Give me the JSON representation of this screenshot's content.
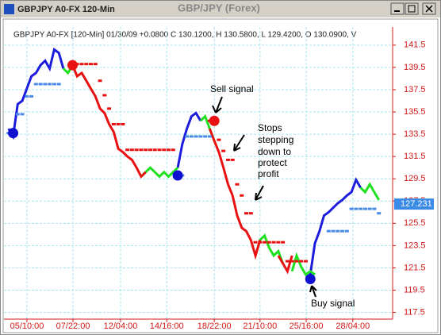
{
  "window": {
    "title": "GBPJPY A0-FX 120-Min",
    "caption": "GBP/JPY (Forex)"
  },
  "chart_data": {
    "type": "line",
    "info": "GBPJPY A0-FX [120-Min] 01/30/09 +0.0800 C 130.1200, H 130.5800, L 129.4200, O 130.0900, V",
    "x": [
      0,
      1,
      2,
      3,
      4,
      5,
      6,
      7,
      8,
      9,
      10,
      11,
      12,
      13,
      14,
      15,
      16,
      17,
      18,
      19,
      20,
      21,
      22,
      23,
      24,
      25,
      26,
      27,
      28,
      29,
      30,
      31,
      32,
      33,
      34,
      35,
      36,
      37,
      38,
      39,
      40,
      41,
      42,
      43,
      44,
      45,
      46,
      47,
      48,
      49,
      50,
      51,
      52,
      53,
      54,
      55,
      56,
      57,
      58,
      59,
      60,
      61,
      62,
      63,
      64,
      65,
      66,
      67,
      68,
      69,
      70,
      71,
      72,
      73,
      74,
      75,
      76,
      77,
      78,
      79,
      80,
      81
    ],
    "xlim": [
      -1,
      84
    ],
    "xticks": [
      {
        "value": 4.03,
        "label": "05/10:00"
      },
      {
        "value": 14.1,
        "label": "07/22:00"
      },
      {
        "value": 24.5,
        "label": "12/04:00"
      },
      {
        "value": 34.6,
        "label": "14/16:00"
      },
      {
        "value": 45.0,
        "label": "18/22:00"
      },
      {
        "value": 55.0,
        "label": "21/10:00"
      },
      {
        "value": 65.1,
        "label": "25/16:00"
      },
      {
        "value": 75.3,
        "label": "28/04:00"
      }
    ],
    "ylim": [
      116.9,
      142.7
    ],
    "yticks": [
      117.5,
      119.5,
      121.5,
      123.5,
      125.5,
      127.5,
      129.5,
      131.5,
      133.5,
      135.5,
      137.5,
      139.5,
      141.5
    ],
    "grid": true,
    "series": [
      {
        "color": "#1c1cdc",
        "style": "line",
        "values": [
          134.0,
          133.3,
          136.2,
          136.5,
          137.6,
          138.7,
          139.0,
          139.7,
          140.1,
          139.4,
          141.1,
          140.8,
          139.4,
          null,
          null,
          null,
          null,
          null,
          null,
          null,
          null,
          null,
          null,
          null,
          null,
          null,
          null,
          null,
          null,
          null,
          null,
          null,
          null,
          null,
          null,
          null,
          null,
          130.5,
          132.6,
          134.0,
          135.1,
          135.4,
          134.7,
          null,
          null,
          null,
          null,
          null,
          null,
          null,
          null,
          null,
          null,
          null,
          null,
          null,
          null,
          null,
          null,
          null,
          null,
          null,
          null,
          null,
          null,
          null,
          120.9,
          123.7,
          124.8,
          126.2,
          126.5,
          126.9,
          127.3,
          127.6,
          128.0,
          128.3,
          129.4,
          128.7,
          null,
          null,
          null,
          null
        ]
      },
      {
        "color": "#1ee01e",
        "style": "line",
        "values": [
          null,
          null,
          null,
          null,
          null,
          null,
          null,
          null,
          null,
          null,
          null,
          null,
          139.4,
          139.0,
          139.7,
          null,
          null,
          null,
          null,
          null,
          null,
          null,
          null,
          null,
          null,
          null,
          null,
          null,
          null,
          129.7,
          130.1,
          130.5,
          130.1,
          129.7,
          130.1,
          129.7,
          130.1,
          130.5,
          null,
          null,
          null,
          null,
          134.7,
          135.1,
          134.0,
          132.9,
          null,
          null,
          null,
          null,
          null,
          null,
          null,
          null,
          122.6,
          124.0,
          124.4,
          123.3,
          122.6,
          123.0,
          121.9,
          null,
          121.2,
          122.6,
          121.6,
          120.9,
          121.2,
          120.9,
          null,
          null,
          null,
          null,
          null,
          null,
          null,
          null,
          null,
          128.7,
          128.3,
          129.0,
          128.3,
          127.6
        ]
      },
      {
        "color": "#e81010",
        "style": "line",
        "values": [
          null,
          null,
          null,
          null,
          null,
          null,
          null,
          null,
          null,
          null,
          null,
          null,
          null,
          null,
          139.7,
          138.7,
          139.0,
          138.3,
          137.6,
          136.9,
          135.8,
          135.4,
          134.4,
          133.7,
          132.2,
          131.9,
          131.5,
          131.2,
          130.5,
          129.7,
          130.1,
          null,
          null,
          null,
          null,
          null,
          null,
          null,
          null,
          null,
          null,
          null,
          null,
          null,
          134.0,
          132.9,
          131.9,
          130.5,
          129.0,
          128.0,
          126.2,
          125.1,
          124.8,
          124.0,
          122.6,
          124.0,
          null,
          null,
          null,
          122.6,
          121.9,
          121.2,
          122.6,
          null,
          null,
          null,
          null,
          null,
          null,
          null,
          null,
          null,
          null,
          null,
          null,
          null,
          null,
          null,
          null,
          null,
          null,
          null
        ]
      },
      {
        "color": "#4a8ae8",
        "style": "dash",
        "values": [
          133.6,
          133.6,
          135.3,
          135.3,
          136.9,
          136.9,
          138.0,
          138.0,
          138.0,
          138.0,
          138.0,
          138.0,
          null,
          null,
          null,
          null,
          null,
          null,
          null,
          null,
          null,
          null,
          null,
          null,
          null,
          null,
          null,
          null,
          null,
          null,
          null,
          null,
          null,
          null,
          null,
          null,
          null,
          129.8,
          129.8,
          133.3,
          133.3,
          133.3,
          133.3,
          133.3,
          133.3,
          null,
          null,
          null,
          null,
          null,
          null,
          null,
          null,
          null,
          null,
          null,
          null,
          null,
          null,
          null,
          null,
          null,
          null,
          null,
          null,
          null,
          null,
          null,
          null,
          null,
          124.8,
          124.8,
          124.8,
          124.8,
          124.8,
          126.8,
          126.8,
          126.8,
          126.8,
          126.8,
          126.8,
          126.4
        ]
      },
      {
        "color": "#e81010",
        "style": "dash",
        "values": [
          null,
          null,
          null,
          null,
          null,
          null,
          null,
          null,
          null,
          null,
          null,
          null,
          null,
          null,
          139.8,
          139.8,
          139.8,
          139.8,
          139.8,
          139.8,
          138.3,
          137.0,
          135.8,
          134.4,
          134.4,
          134.4,
          132.1,
          132.1,
          132.1,
          132.1,
          132.1,
          132.1,
          132.1,
          132.1,
          132.1,
          132.1,
          132.1,
          null,
          null,
          null,
          null,
          null,
          null,
          null,
          134.7,
          134.7,
          133.0,
          132.0,
          131.2,
          131.2,
          129.0,
          128.0,
          126.4,
          126.4,
          123.8,
          123.8,
          123.8,
          123.8,
          123.8,
          123.8,
          123.8,
          122.1,
          122.1,
          122.1,
          122.1,
          122.1,
          null,
          null,
          null,
          null,
          null,
          null,
          null,
          null,
          null,
          null,
          null,
          null,
          null,
          null,
          null,
          null
        ]
      }
    ],
    "signals": {
      "x": [
        1,
        14,
        37,
        45,
        66
      ],
      "values": [
        133.6,
        139.7,
        129.8,
        134.7,
        120.5
      ],
      "colors": [
        "#1010d0",
        "#e81010",
        "#1010d0",
        "#e81010",
        "#1010d0"
      ]
    },
    "last_price": 127.231,
    "last_price_color": "#3a8ae8",
    "annotations": {
      "sell": "Sell signal",
      "stops": [
        "Stops",
        "stepping",
        "down to",
        "protect",
        "profit"
      ],
      "buy": "Buy signal"
    }
  }
}
